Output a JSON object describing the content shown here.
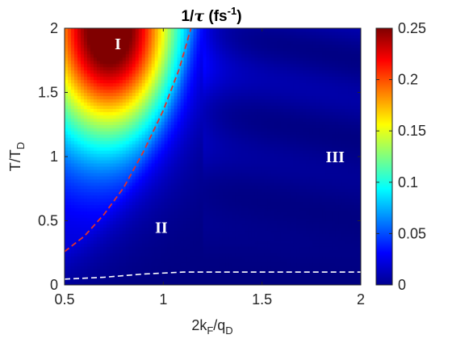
{
  "chart_data": {
    "type": "heatmap",
    "title": {
      "main": "1/",
      "symbol": "τ",
      "unit_open": " (fs",
      "unit_exp": "-1",
      "unit_close": ")"
    },
    "xlabel": {
      "main": "2k",
      "sub1": "F",
      "mid": "/q",
      "sub2": "D"
    },
    "ylabel": {
      "main": "T/T",
      "sub": "D"
    },
    "xlim": [
      0.5,
      2
    ],
    "ylim": [
      0,
      2
    ],
    "xticks": [
      0.5,
      1,
      1.5,
      2
    ],
    "xtick_labels": [
      "0.5",
      "1",
      "1.5",
      "2"
    ],
    "yticks": [
      0,
      0.5,
      1,
      1.5,
      2
    ],
    "ytick_labels": [
      "0",
      "0.5",
      "1",
      "1.5",
      "2"
    ],
    "colorbar": {
      "range": [
        0,
        0.25
      ],
      "ticks": [
        0,
        0.05,
        0.1,
        0.15,
        0.2,
        0.25
      ],
      "tick_labels": [
        "0",
        "0.05",
        "0.1",
        "0.15",
        "0.2",
        "0.25"
      ],
      "colormap": "jet"
    },
    "peak": {
      "x": 0.73,
      "y": 2.0,
      "value": 0.25
    },
    "boundary_red": {
      "color": "#e03030",
      "style": "dashed",
      "points": [
        [
          0.5,
          0.26
        ],
        [
          0.6,
          0.38
        ],
        [
          0.7,
          0.55
        ],
        [
          0.8,
          0.76
        ],
        [
          0.9,
          1.04
        ],
        [
          1.0,
          1.36
        ],
        [
          1.08,
          1.68
        ],
        [
          1.14,
          2.0
        ]
      ]
    },
    "boundary_white": {
      "color": "#ffffff",
      "style": "dashed",
      "points": [
        [
          0.5,
          0.045
        ],
        [
          0.7,
          0.06
        ],
        [
          0.9,
          0.085
        ],
        [
          1.1,
          0.1
        ],
        [
          1.5,
          0.1
        ],
        [
          2.0,
          0.1
        ]
      ]
    },
    "regions": [
      {
        "label": "I",
        "x": 0.77,
        "y": 1.88
      },
      {
        "label": "II",
        "x": 0.99,
        "y": 0.45
      },
      {
        "label": "III",
        "x": 1.87,
        "y": 1.0
      }
    ]
  }
}
